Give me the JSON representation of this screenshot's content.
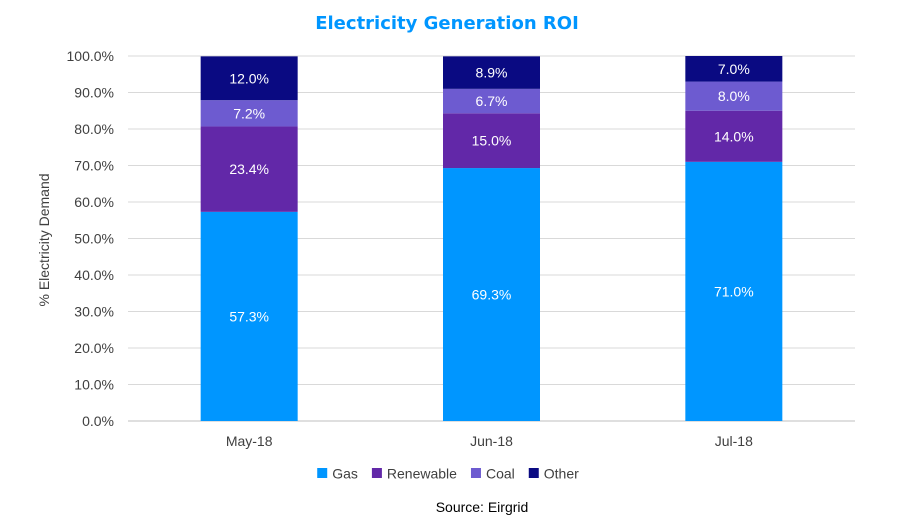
{
  "chart_data": {
    "type": "bar",
    "stacked": true,
    "title": "Electricity Generation ROI",
    "ylabel": "% Electricity Demand",
    "xlabel": "",
    "categories": [
      "May-18",
      "Jun-18",
      "Jul-18"
    ],
    "ylim": [
      0,
      100
    ],
    "yticks": [
      "0.0%",
      "10.0%",
      "20.0%",
      "30.0%",
      "40.0%",
      "50.0%",
      "60.0%",
      "70.0%",
      "80.0%",
      "90.0%",
      "100.0%"
    ],
    "grid": true,
    "legend_position": "bottom",
    "series": [
      {
        "name": "Gas",
        "values": [
          57.3,
          69.3,
          71.0
        ],
        "labels": [
          "57.3%",
          "69.3%",
          "71.0%"
        ],
        "color": "#0096ff",
        "label_color": "#ffffff"
      },
      {
        "name": "Renewable",
        "values": [
          23.4,
          15.0,
          14.0
        ],
        "labels": [
          "23.4%",
          "15.0%",
          "14.0%"
        ],
        "color": "#6228a8",
        "label_color": "#ffffff"
      },
      {
        "name": "Coal",
        "values": [
          7.2,
          6.7,
          8.0
        ],
        "labels": [
          "7.2%",
          "6.7%",
          "8.0%"
        ],
        "color": "#6d5bd0",
        "label_color": "#ffffff"
      },
      {
        "name": "Other",
        "values": [
          12.0,
          8.9,
          7.0
        ],
        "labels": [
          "12.0%",
          "8.9%",
          "7.0%"
        ],
        "color": "#0a0a82",
        "label_color": "#ffffff"
      }
    ],
    "source": "Source: Eirgrid"
  }
}
